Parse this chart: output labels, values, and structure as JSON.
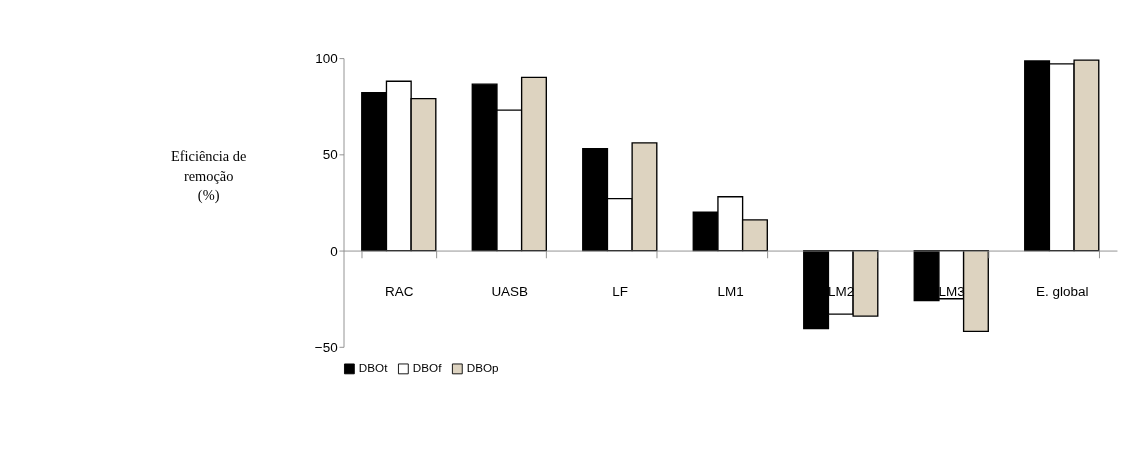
{
  "chart_data": {
    "type": "bar",
    "ylabel": "Eficiência de\nremoção\n(%)",
    "categories": [
      "RAC",
      "UASB",
      "LF",
      "LM1",
      "LM2",
      "LM3",
      "E. global"
    ],
    "series": [
      {
        "name": "DBOt",
        "color": "#000000",
        "values": [
          82,
          86.5,
          53,
          20,
          -40.5,
          -26,
          98.5
        ]
      },
      {
        "name": "DBOf",
        "color": "#ffffff",
        "values": [
          88,
          73,
          27,
          28,
          -33,
          -25,
          97
        ]
      },
      {
        "name": "DBOp",
        "color": "#ddd3c0",
        "values": [
          79,
          90,
          56,
          16,
          -34,
          -42,
          99
        ]
      }
    ],
    "ylim": [
      -50,
      100
    ],
    "yticks": [
      -50,
      0,
      50,
      100
    ],
    "grid": false,
    "legend": "bottom"
  }
}
